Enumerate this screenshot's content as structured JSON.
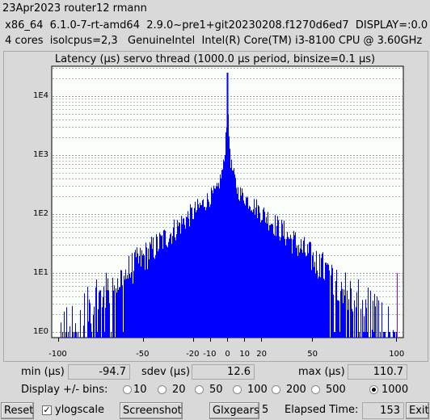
{
  "header": {
    "line1": "23Apr2023 router12 rmann",
    "line2": " x86_64  6.1.0-7-rt-amd64  2.9.0~pre1+git20230208.f1270d6ed7  DISPLAY=:0.0",
    "line3": " 4 cores  isolcpus=2,3   GenuineIntel  Intel(R) Core(TM) i3-8100 CPU @ 3.60GHz"
  },
  "chart_data": {
    "type": "bar",
    "title": "Latency (µs) servo thread (1000.0 µs period, binsize=0.1 µs)",
    "yscale": "log",
    "ylim": [
      1,
      30000
    ],
    "xlim": [
      -100,
      100
    ],
    "y_tick_labels": [
      "1E0",
      "1E1",
      "1E2",
      "1E3",
      "1E4"
    ],
    "x_tick_labels": [
      "-100",
      "-50",
      "-20",
      "-10",
      "0",
      "10",
      "20",
      "50",
      "100"
    ],
    "x_tick_values": [
      -100,
      -50,
      -20,
      -10,
      0,
      10,
      20,
      50,
      100
    ],
    "series_color": "#0000ff",
    "peak": {
      "x": 0,
      "y": 25000
    },
    "outliers": [
      {
        "x": 100.5,
        "y": 10
      }
    ]
  },
  "stats": {
    "min_label": "min (µs)",
    "min_value": "-94.7",
    "sdev_label": "sdev (µs)",
    "sdev_value": "12.6",
    "max_label": "max (µs)",
    "max_value": "110.7"
  },
  "bins": {
    "label": "Display +/- bins:",
    "options": [
      "10",
      "20",
      "50",
      "100",
      "200",
      "500",
      "1000"
    ],
    "selected": "1000"
  },
  "toolbar": {
    "reset": "Reset",
    "ylogscale": "ylogscale",
    "ylogscale_checked": true,
    "screenshot": "Screenshot",
    "glxgears": "Glxgears",
    "glxgears_count": "5",
    "elapsed_label": "Elapsed Time:",
    "elapsed_value": "153",
    "exit": "Exit"
  }
}
